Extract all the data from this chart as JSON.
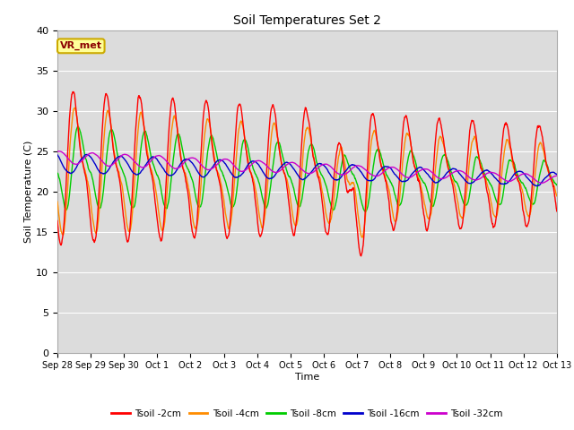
{
  "title": "Soil Temperatures Set 2",
  "xlabel": "Time",
  "ylabel": "Soil Temperature (C)",
  "ylim": [
    0,
    40
  ],
  "yticks": [
    0,
    5,
    10,
    15,
    20,
    25,
    30,
    35,
    40
  ],
  "x_labels": [
    "Sep 28",
    "Sep 29",
    "Sep 30",
    "Oct 1",
    "Oct 2",
    "Oct 3",
    "Oct 4",
    "Oct 5",
    "Oct 6",
    "Oct 7",
    "Oct 8",
    "Oct 9",
    "Oct 10",
    "Oct 11",
    "Oct 12",
    "Oct 13"
  ],
  "colors": {
    "Tsoil -2cm": "#FF0000",
    "Tsoil -4cm": "#FF8C00",
    "Tsoil -8cm": "#00CC00",
    "Tsoil -16cm": "#0000CC",
    "Tsoil -32cm": "#CC00CC"
  },
  "bg_color": "#DCDCDC",
  "grid_color": "#FFFFFF",
  "annotation_text": "VR_met",
  "annotation_bg": "#FFFF99",
  "annotation_border": "#CCAA00",
  "annotation_color": "#8B0000",
  "legend_labels": [
    "Tsoil -2cm",
    "Tsoil -4cm",
    "Tsoil -8cm",
    "Tsoil -16cm",
    "Tsoil -32cm"
  ]
}
